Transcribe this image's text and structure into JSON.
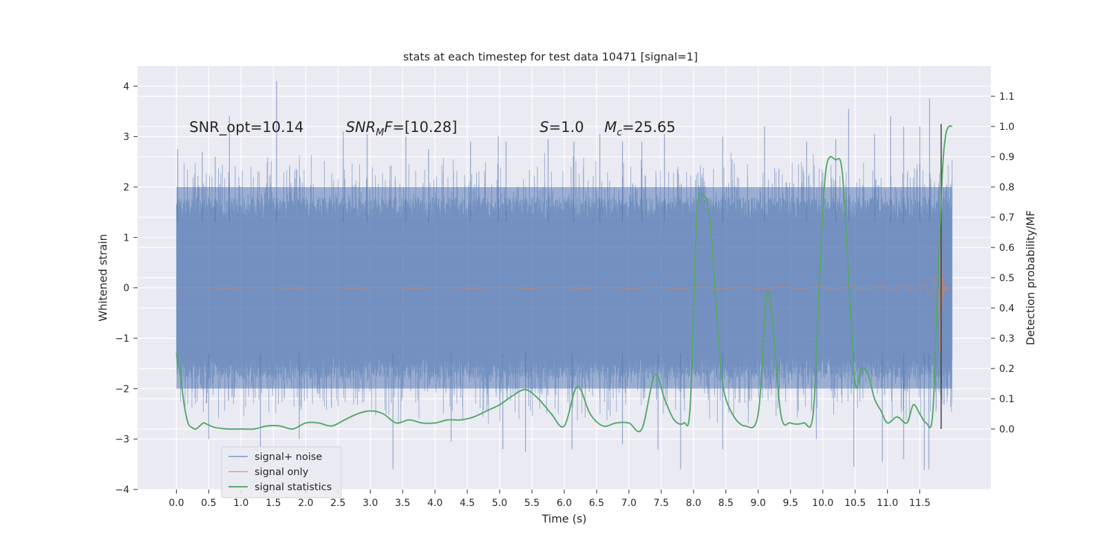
{
  "chart_data": {
    "type": "line",
    "title": "stats at each timestep for test data 10471 [signal=1]",
    "xlabel": "Time (s)",
    "ylabel": "Whitened strain",
    "ylabel_right": "Detection probability/MF",
    "xlim": [
      -0.6,
      12.6
    ],
    "ylim": [
      -4,
      4.4
    ],
    "ylim_right": [
      -0.2,
      1.2
    ],
    "x_ticks": [
      0.0,
      0.5,
      1.0,
      1.5,
      2.0,
      2.5,
      3.0,
      3.5,
      4.0,
      4.5,
      5.0,
      5.5,
      6.0,
      6.5,
      7.0,
      7.5,
      8.0,
      8.5,
      9.0,
      9.5,
      10.0,
      10.5,
      11.0,
      11.5
    ],
    "x_tick_labels": [
      "0.0",
      "0.5",
      "1.0",
      "1.5",
      "2.0",
      "2.5",
      "3.0",
      "3.5",
      "4.0",
      "4.5",
      "5.0",
      "5.5",
      "6.0",
      "6.5",
      "7.0",
      "7.5",
      "8.0",
      "8.5",
      "9.0",
      "9.5",
      "10.0",
      "10.5",
      "11.0",
      "11.5"
    ],
    "y_ticks": [
      -4,
      -3,
      -2,
      -1,
      0,
      1,
      2,
      3,
      4
    ],
    "y_tick_labels": [
      "−4",
      "−3",
      "−2",
      "−1",
      "0",
      "1",
      "2",
      "3",
      "4"
    ],
    "y_right_ticks": [
      0.0,
      0.1,
      0.2,
      0.3,
      0.4,
      0.5,
      0.6,
      0.7,
      0.8,
      0.9,
      1.0,
      1.1
    ],
    "y_right_tick_labels": [
      "0.0",
      "0.1",
      "0.2",
      "0.3",
      "0.4",
      "0.5",
      "0.6",
      "0.7",
      "0.8",
      "0.9",
      "1.0",
      "1.1"
    ],
    "grid": true,
    "legend_position": "lower-left",
    "annotations": [
      {
        "label": "SNR_opt=10.14",
        "x": 0.2,
        "y": 3.2
      },
      {
        "label": "SNR_MF=[10.28]",
        "x": 2.62,
        "y": 3.2
      },
      {
        "label": "S=1.0",
        "x": 5.62,
        "y": 3.2
      },
      {
        "label": "M_c=25.65",
        "x": 6.62,
        "y": 3.2
      }
    ],
    "series": [
      {
        "name": "signal+ noise",
        "color": "#4c72b0",
        "kind": "noise",
        "x_range": [
          0.0,
          12.0
        ],
        "band": [
          -2.0,
          2.0
        ],
        "peaks_high": [
          [
            0.02,
            2.75
          ],
          [
            0.4,
            2.7
          ],
          [
            0.6,
            2.6
          ],
          [
            0.82,
            3.4
          ],
          [
            1.55,
            4.1
          ],
          [
            2.58,
            3.1
          ],
          [
            2.95,
            3.05
          ],
          [
            3.55,
            3.0
          ],
          [
            3.9,
            2.75
          ],
          [
            4.55,
            2.9
          ],
          [
            4.98,
            3.0
          ],
          [
            5.1,
            2.9
          ],
          [
            5.75,
            2.95
          ],
          [
            6.15,
            2.9
          ],
          [
            6.55,
            3.05
          ],
          [
            6.9,
            2.9
          ],
          [
            7.2,
            2.9
          ],
          [
            7.55,
            3.05
          ],
          [
            8.45,
            3.0
          ],
          [
            9.1,
            3.2
          ],
          [
            9.75,
            2.9
          ],
          [
            10.2,
            2.95
          ],
          [
            10.4,
            3.55
          ],
          [
            10.8,
            3.05
          ],
          [
            11.05,
            3.4
          ],
          [
            11.25,
            3.2
          ],
          [
            11.5,
            3.2
          ],
          [
            11.65,
            3.75
          ]
        ],
        "peaks_low": [
          [
            0.5,
            -3.0
          ],
          [
            1.3,
            -3.15
          ],
          [
            1.9,
            -3.0
          ],
          [
            3.35,
            -3.6
          ],
          [
            4.25,
            -3.05
          ],
          [
            5.05,
            -3.2
          ],
          [
            5.4,
            -3.25
          ],
          [
            6.12,
            -3.2
          ],
          [
            6.9,
            -3.1
          ],
          [
            7.45,
            -3.2
          ],
          [
            7.8,
            -3.6
          ],
          [
            8.45,
            -3.2
          ],
          [
            9.9,
            -3.0
          ],
          [
            10.48,
            -3.55
          ],
          [
            10.92,
            -3.45
          ],
          [
            11.25,
            -3.4
          ],
          [
            11.57,
            -3.62
          ],
          [
            11.64,
            -3.6
          ]
        ]
      },
      {
        "name": "signal only",
        "color": "#dd8452",
        "kind": "chirp",
        "x_range": [
          0.0,
          12.0
        ],
        "merger_time": 11.82,
        "peak_amplitude": 2.0
      },
      {
        "name": "signal statistics",
        "color": "#55a868",
        "kind": "probability",
        "axis": "right",
        "x": [
          0.0,
          0.06,
          0.12,
          0.18,
          0.24,
          0.3,
          0.36,
          0.42,
          0.48,
          0.6,
          0.8,
          1.0,
          1.2,
          1.4,
          1.6,
          1.8,
          2.0,
          2.2,
          2.4,
          2.6,
          2.8,
          3.0,
          3.2,
          3.4,
          3.6,
          3.8,
          4.0,
          4.2,
          4.4,
          4.6,
          4.8,
          5.0,
          5.2,
          5.4,
          5.6,
          5.8,
          6.0,
          6.2,
          6.4,
          6.6,
          6.8,
          7.0,
          7.2,
          7.4,
          7.55,
          7.7,
          7.85,
          7.95,
          8.05,
          8.15,
          8.25,
          8.35,
          8.45,
          8.6,
          8.8,
          9.0,
          9.12,
          9.2,
          9.35,
          9.5,
          9.7,
          9.85,
          9.95,
          10.05,
          10.2,
          10.3,
          10.4,
          10.5,
          10.6,
          10.7,
          10.8,
          10.9,
          11.0,
          11.15,
          11.3,
          11.4,
          11.5,
          11.6,
          11.7,
          11.78,
          11.85,
          11.9,
          11.95,
          12.0
        ],
        "y": [
          0.25,
          0.18,
          0.08,
          0.02,
          0.005,
          0.0,
          0.01,
          0.02,
          0.015,
          0.005,
          0.0,
          0.0,
          0.0,
          0.01,
          0.01,
          0.0,
          0.02,
          0.02,
          0.01,
          0.03,
          0.05,
          0.06,
          0.05,
          0.02,
          0.03,
          0.02,
          0.02,
          0.03,
          0.03,
          0.04,
          0.06,
          0.08,
          0.11,
          0.13,
          0.1,
          0.05,
          0.01,
          0.14,
          0.05,
          0.01,
          0.02,
          0.02,
          0.0,
          0.18,
          0.1,
          0.03,
          0.02,
          0.08,
          0.7,
          0.77,
          0.7,
          0.4,
          0.15,
          0.05,
          0.01,
          0.05,
          0.42,
          0.4,
          0.05,
          0.02,
          0.02,
          0.05,
          0.5,
          0.86,
          0.89,
          0.85,
          0.5,
          0.15,
          0.2,
          0.18,
          0.1,
          0.06,
          0.02,
          0.04,
          0.02,
          0.08,
          0.05,
          0.02,
          0.05,
          0.5,
          0.85,
          0.97,
          1.0,
          1.0
        ]
      }
    ],
    "vertical_marker": {
      "x": 11.83,
      "color": "#444444",
      "y_range": [
        -2.8,
        3.25
      ]
    }
  }
}
